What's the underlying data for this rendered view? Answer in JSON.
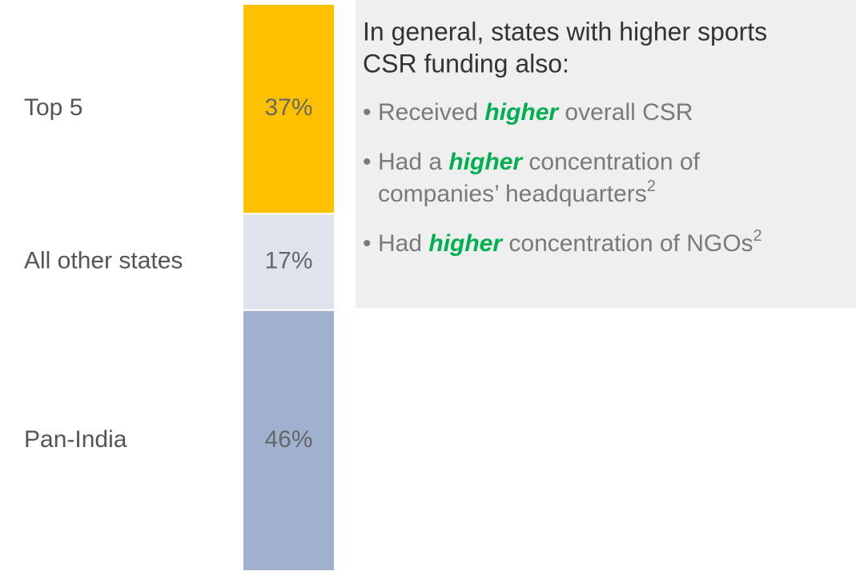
{
  "chart_data": {
    "type": "stacked-bar",
    "series": [
      {
        "name": "Top 5",
        "color": "#FFC000",
        "values": [
          37
        ],
        "value_labels": [
          "37%"
        ]
      },
      {
        "name": "All other states",
        "color": "#DEE3ED",
        "values": [
          17
        ],
        "value_labels": [
          "17%"
        ]
      },
      {
        "name": "Pan-India",
        "color": "#9FB1CF",
        "values": [
          46
        ],
        "value_labels": [
          "46%"
        ]
      }
    ],
    "annotation": {
      "heading": [
        "In general, states with higher sports",
        "CSR funding also:"
      ],
      "marker": "•",
      "emphasis_color": "#00B050",
      "bullets": [
        [
          [
            {
              "text": "Received "
            },
            {
              "text": "higher",
              "style": "emphasis"
            },
            {
              "text": " overall CSR"
            }
          ]
        ],
        [
          [
            {
              "text": "Had a "
            },
            {
              "text": "higher",
              "style": "emphasis"
            },
            {
              "text": " concentration of"
            }
          ],
          [
            {
              "text": "companies’ headquarters"
            },
            {
              "text": "2",
              "style": "superscript"
            }
          ]
        ],
        [
          [
            {
              "text": "Had "
            },
            {
              "text": "higher",
              "style": "emphasis"
            },
            {
              "text": " concentration of NGOs"
            },
            {
              "text": "2",
              "style": "superscript"
            }
          ]
        ]
      ]
    }
  }
}
